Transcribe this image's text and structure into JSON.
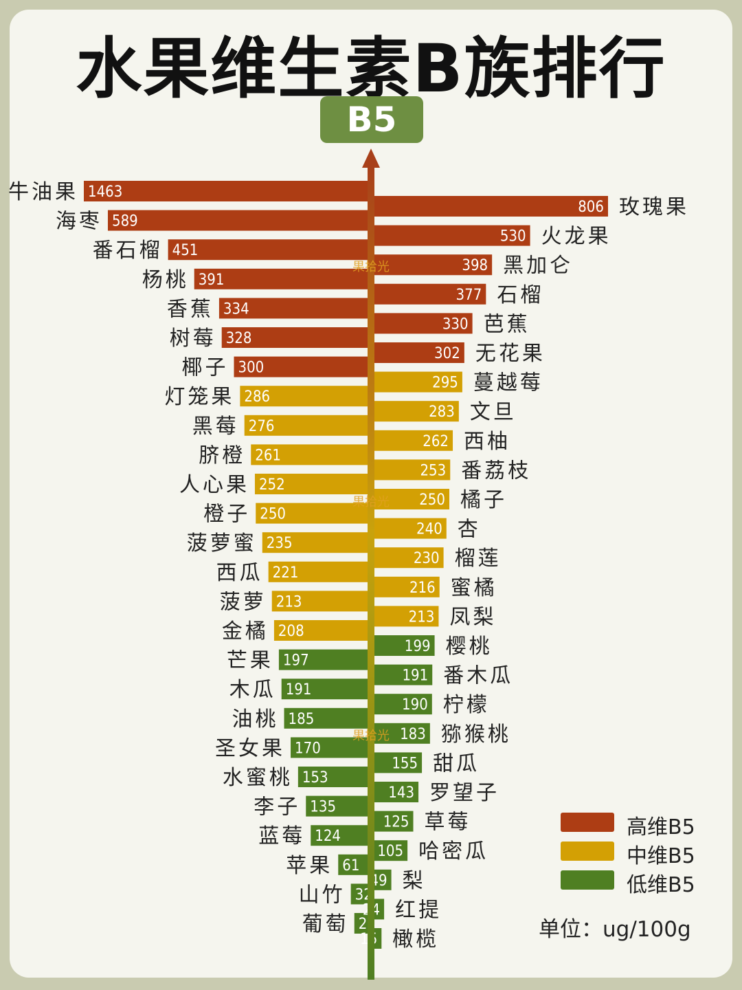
{
  "title": "水果维生素B族排行",
  "badge": "B5",
  "watermark": "果拾光",
  "legend": [
    {
      "label": "高维B5",
      "color": "#ad3d14"
    },
    {
      "label": "中维B5",
      "color": "#d3a004"
    },
    {
      "label": "低维B5",
      "color": "#4f7f22"
    }
  ],
  "unit": "单位：ug/100g",
  "chart_data": {
    "type": "bar",
    "orientation": "horizontal-diverging",
    "left_series": {
      "categories": [
        "牛油果",
        "海枣",
        "番石榴",
        "杨桃",
        "香蕉",
        "树莓",
        "椰子",
        "灯笼果",
        "黑莓",
        "脐橙",
        "人心果",
        "橙子",
        "菠萝蜜",
        "西瓜",
        "菠萝",
        "金橘",
        "芒果",
        "木瓜",
        "油桃",
        "圣女果",
        "水蜜桃",
        "李子",
        "蓝莓",
        "苹果",
        "山竹",
        "葡萄"
      ],
      "values": [
        1463,
        589,
        451,
        391,
        334,
        328,
        300,
        286,
        276,
        261,
        252,
        250,
        235,
        221,
        213,
        208,
        197,
        191,
        185,
        170,
        153,
        135,
        124,
        61,
        32,
        24
      ]
    },
    "right_series": {
      "categories": [
        "玫瑰果",
        "火龙果",
        "黑加仑",
        "石榴",
        "芭蕉",
        "无花果",
        "蔓越莓",
        "文旦",
        "西柚",
        "番荔枝",
        "橘子",
        "杏",
        "榴莲",
        "蜜橘",
        "凤梨",
        "樱桃",
        "番木瓜",
        "柠檬",
        "猕猴桃",
        "甜瓜",
        "罗望子",
        "草莓",
        "哈密瓜",
        "梨",
        "红提",
        "橄榄"
      ],
      "values": [
        806,
        530,
        398,
        377,
        330,
        302,
        295,
        283,
        262,
        253,
        250,
        240,
        230,
        216,
        213,
        199,
        191,
        190,
        183,
        155,
        143,
        125,
        105,
        49,
        24,
        15
      ]
    },
    "levels": {
      "high": "高维B5",
      "mid": "中维B5",
      "low": "低维B5"
    }
  }
}
